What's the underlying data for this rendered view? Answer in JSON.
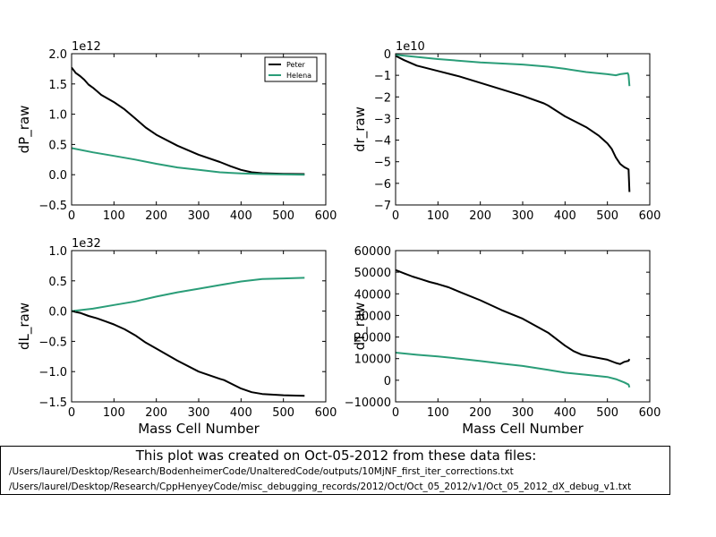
{
  "colors": {
    "peter": "#000000",
    "helena": "#2a9d78"
  },
  "legend": [
    "Peter",
    "Helena"
  ],
  "footer": {
    "title": "This plot was created on Oct-05-2012 from these data files:",
    "files": [
      "/Users/laurel/Desktop/Research/BodenheimerCode/UnalteredCode/outputs/10MjNF_first_iter_corrections.txt",
      "/Users/laurel/Desktop/Research/CppHenyeyCode/misc_debugging_records/2012/Oct/Oct_05_2012/v1/Oct_05_2012_dX_debug_v1.txt"
    ]
  },
  "chart_data": [
    {
      "type": "line",
      "ylabel": "dP_raw",
      "xlabel": "",
      "multiplier": "1e12",
      "xlim": [
        0,
        600
      ],
      "ylim": [
        -0.5,
        2.0
      ],
      "xticks": [
        "0",
        "100",
        "200",
        "300",
        "400",
        "500",
        "600"
      ],
      "yticks": [
        "−0.5",
        "0.0",
        "0.5",
        "1.0",
        "1.5",
        "2.0"
      ],
      "ytick_values": [
        -0.5,
        0.0,
        0.5,
        1.0,
        1.5,
        2.0
      ],
      "legend": "top-right",
      "series": [
        {
          "name": "Peter",
          "x": [
            0,
            10,
            20,
            30,
            40,
            50,
            60,
            70,
            100,
            125,
            150,
            175,
            200,
            250,
            300,
            350,
            375,
            400,
            425,
            450,
            500,
            550
          ],
          "y": [
            1.77,
            1.68,
            1.63,
            1.57,
            1.49,
            1.44,
            1.38,
            1.32,
            1.2,
            1.08,
            0.93,
            0.78,
            0.66,
            0.48,
            0.33,
            0.21,
            0.14,
            0.08,
            0.04,
            0.025,
            0.015,
            0.01
          ]
        },
        {
          "name": "Helena",
          "x": [
            0,
            50,
            100,
            150,
            200,
            250,
            300,
            350,
            400,
            450,
            500,
            550
          ],
          "y": [
            0.44,
            0.37,
            0.31,
            0.25,
            0.18,
            0.12,
            0.08,
            0.04,
            0.02,
            0.01,
            0.005,
            0.0
          ]
        }
      ]
    },
    {
      "type": "line",
      "ylabel": "dr_raw",
      "xlabel": "",
      "multiplier": "1e10",
      "xlim": [
        0,
        600
      ],
      "ylim": [
        -7,
        0
      ],
      "xticks": [
        "0",
        "100",
        "200",
        "300",
        "400",
        "500",
        "600"
      ],
      "yticks": [
        "−7",
        "−6",
        "−5",
        "−4",
        "−3",
        "−2",
        "−1",
        "0"
      ],
      "ytick_values": [
        -7,
        -6,
        -5,
        -4,
        -3,
        -2,
        -1,
        0
      ],
      "series": [
        {
          "name": "Peter",
          "x": [
            0,
            20,
            50,
            70,
            100,
            150,
            200,
            250,
            300,
            350,
            360,
            400,
            450,
            480,
            500,
            510,
            520,
            530,
            540,
            545,
            550,
            552
          ],
          "y": [
            -0.1,
            -0.3,
            -0.55,
            -0.65,
            -0.8,
            -1.05,
            -1.35,
            -1.65,
            -1.95,
            -2.3,
            -2.4,
            -2.9,
            -3.4,
            -3.8,
            -4.15,
            -4.4,
            -4.8,
            -5.1,
            -5.25,
            -5.3,
            -5.35,
            -6.4
          ]
        },
        {
          "name": "Helena",
          "x": [
            0,
            50,
            100,
            200,
            300,
            360,
            400,
            450,
            500,
            520,
            530,
            548,
            550,
            552
          ],
          "y": [
            -0.05,
            -0.15,
            -0.25,
            -0.4,
            -0.5,
            -0.6,
            -0.7,
            -0.85,
            -0.95,
            -1.0,
            -0.95,
            -0.9,
            -1.0,
            -1.5
          ]
        }
      ]
    },
    {
      "type": "line",
      "ylabel": "dL_raw",
      "xlabel": "Mass Cell Number",
      "multiplier": "1e32",
      "xlim": [
        0,
        600
      ],
      "ylim": [
        -1.5,
        1.0
      ],
      "xticks": [
        "0",
        "100",
        "200",
        "300",
        "400",
        "500",
        "600"
      ],
      "yticks": [
        "−1.5",
        "−1.0",
        "−0.5",
        "0.0",
        "0.5",
        "1.0"
      ],
      "ytick_values": [
        -1.5,
        -1.0,
        -0.5,
        0.0,
        0.5,
        1.0
      ],
      "series": [
        {
          "name": "Peter",
          "x": [
            0,
            20,
            40,
            60,
            80,
            100,
            125,
            150,
            175,
            200,
            250,
            300,
            350,
            360,
            400,
            425,
            450,
            500,
            550
          ],
          "y": [
            0,
            -0.03,
            -0.08,
            -0.12,
            -0.17,
            -0.22,
            -0.3,
            -0.4,
            -0.52,
            -0.62,
            -0.82,
            -1.0,
            -1.12,
            -1.14,
            -1.28,
            -1.34,
            -1.37,
            -1.39,
            -1.4
          ]
        },
        {
          "name": "Helena",
          "x": [
            0,
            50,
            100,
            150,
            200,
            250,
            300,
            350,
            400,
            450,
            500,
            550
          ],
          "y": [
            0,
            0.04,
            0.1,
            0.16,
            0.24,
            0.31,
            0.37,
            0.43,
            0.49,
            0.53,
            0.54,
            0.55
          ]
        }
      ]
    },
    {
      "type": "line",
      "ylabel": "dT_raw",
      "xlabel": "Mass Cell Number",
      "xlim": [
        0,
        600
      ],
      "ylim": [
        -10000,
        60000
      ],
      "xticks": [
        "0",
        "100",
        "200",
        "300",
        "400",
        "500",
        "600"
      ],
      "yticks": [
        "−10000",
        "0",
        "10000",
        "20000",
        "30000",
        "40000",
        "50000",
        "60000"
      ],
      "ytick_values": [
        -10000,
        0,
        10000,
        20000,
        30000,
        40000,
        50000,
        60000
      ],
      "series": [
        {
          "name": "Peter",
          "x": [
            0,
            20,
            40,
            60,
            80,
            100,
            125,
            150,
            200,
            250,
            300,
            360,
            400,
            420,
            440,
            460,
            500,
            520,
            530,
            540,
            550,
            552
          ],
          "y": [
            51000,
            49500,
            48000,
            46800,
            45500,
            44500,
            43000,
            41000,
            37000,
            32500,
            28500,
            22000,
            16000,
            13500,
            11800,
            11000,
            9500,
            8000,
            7500,
            8500,
            9000,
            9800
          ]
        },
        {
          "name": "Helena",
          "x": [
            0,
            50,
            100,
            150,
            200,
            250,
            300,
            360,
            400,
            450,
            500,
            520,
            540,
            550,
            552
          ],
          "y": [
            12800,
            11800,
            11000,
            10000,
            8900,
            7700,
            6600,
            4800,
            3500,
            2500,
            1500,
            500,
            -1000,
            -2000,
            -3300
          ]
        }
      ]
    }
  ]
}
